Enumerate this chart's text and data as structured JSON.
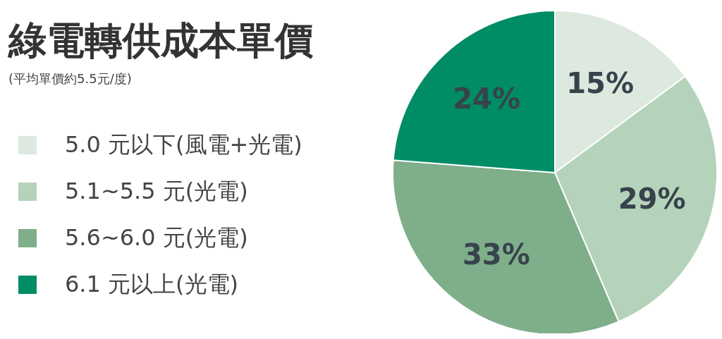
{
  "chart_data": {
    "type": "pie",
    "title": "綠電轉供成本單價",
    "subtitle": "(平均單價約5.5元/度)",
    "categories": [
      "5.0 元以下(風電+光電)",
      "5.1~5.5 元(光電)",
      "5.6~6.0 元(光電)",
      "6.1 元以上(光電)"
    ],
    "values": [
      15,
      29,
      33,
      24
    ],
    "value_labels": [
      "15%",
      "29%",
      "33%",
      "24%"
    ],
    "colors": [
      "#dde8de",
      "#b5d3bb",
      "#7fae8a",
      "#008c65"
    ],
    "legend": "left"
  }
}
